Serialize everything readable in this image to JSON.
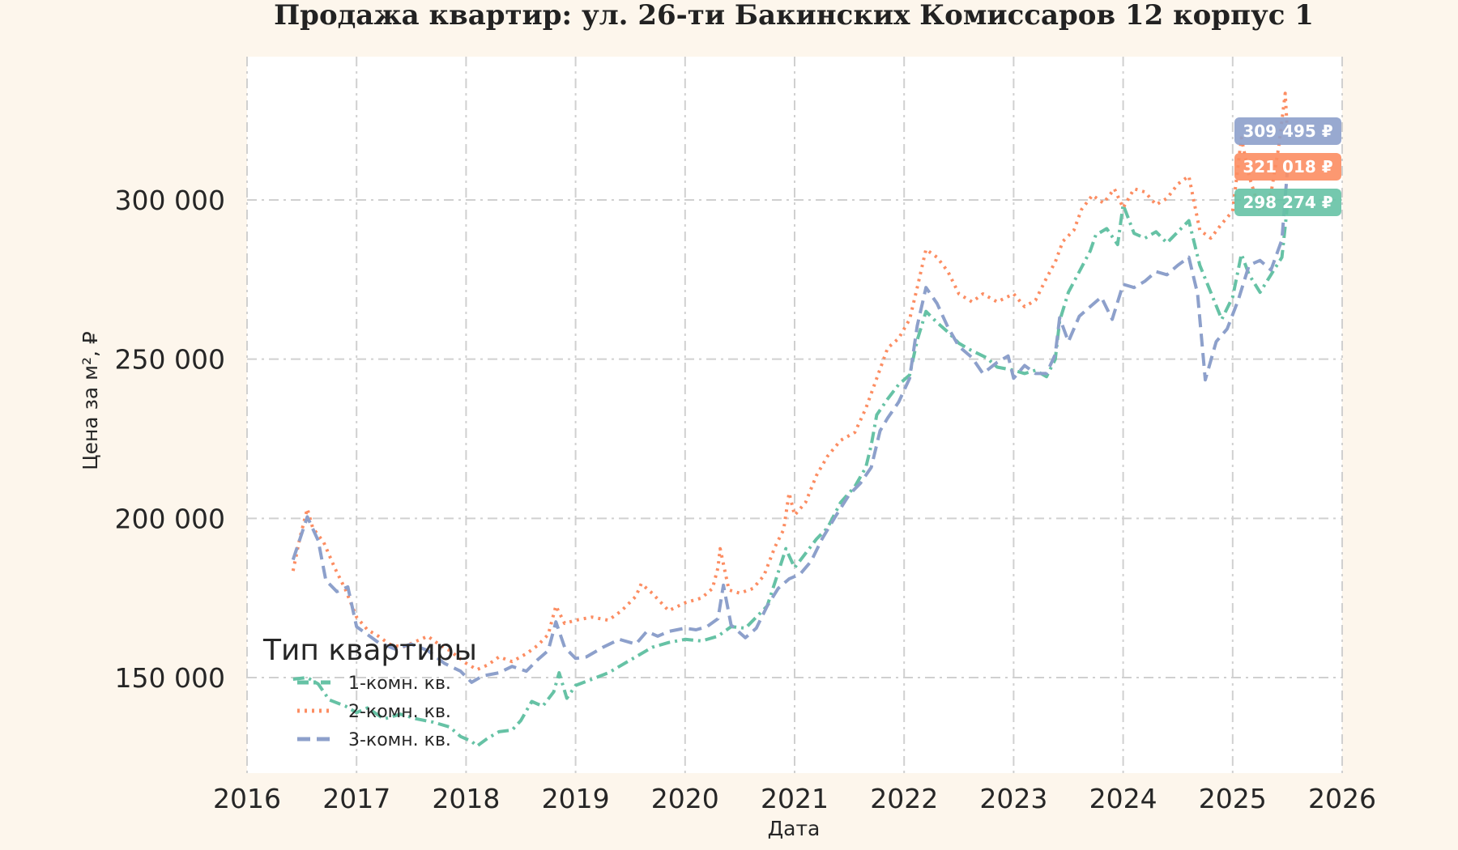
{
  "chart_data": {
    "type": "line",
    "title": "Продажа квартир: ул. 26-ти Бакинских Комиссаров 12 корпус 1",
    "xlabel": "Дата",
    "ylabel": "Цена за м², ₽",
    "xlim": [
      2016.0,
      2026.0
    ],
    "ylim": [
      120000,
      345000
    ],
    "x_ticks": [
      "2016",
      "2017",
      "2018",
      "2019",
      "2020",
      "2021",
      "2022",
      "2023",
      "2024",
      "2025",
      "2026"
    ],
    "y_ticks": [
      {
        "value": 150000,
        "label": "150 000"
      },
      {
        "value": 200000,
        "label": "200 000"
      },
      {
        "value": 250000,
        "label": "250 000"
      },
      {
        "value": 300000,
        "label": "300 000"
      }
    ],
    "grid": true,
    "legend": {
      "title": "Тип квартиры",
      "position": "lower-left"
    },
    "series": [
      {
        "name": "1-комн. кв.",
        "color": "#66c2a5",
        "style": "dashdot",
        "end_label": "298 274 ₽",
        "points": [
          [
            2016.42,
            149500
          ],
          [
            2016.55,
            150000
          ],
          [
            2016.65,
            148000
          ],
          [
            2016.75,
            143000
          ],
          [
            2016.9,
            141000
          ],
          [
            2017.0,
            139000
          ],
          [
            2017.1,
            140500
          ],
          [
            2017.25,
            137000
          ],
          [
            2017.4,
            138500
          ],
          [
            2017.55,
            137000
          ],
          [
            2017.7,
            136000
          ],
          [
            2017.85,
            134500
          ],
          [
            2017.95,
            131500
          ],
          [
            2018.05,
            130000
          ],
          [
            2018.1,
            128500
          ],
          [
            2018.2,
            131000
          ],
          [
            2018.3,
            133000
          ],
          [
            2018.42,
            133500
          ],
          [
            2018.5,
            136500
          ],
          [
            2018.6,
            142500
          ],
          [
            2018.7,
            141000
          ],
          [
            2018.8,
            145500
          ],
          [
            2018.85,
            151500
          ],
          [
            2018.92,
            143500
          ],
          [
            2019.0,
            147500
          ],
          [
            2019.15,
            149500
          ],
          [
            2019.3,
            151500
          ],
          [
            2019.4,
            153500
          ],
          [
            2019.55,
            156500
          ],
          [
            2019.7,
            159500
          ],
          [
            2019.85,
            161000
          ],
          [
            2020.0,
            162000
          ],
          [
            2020.15,
            161500
          ],
          [
            2020.3,
            163000
          ],
          [
            2020.42,
            166000
          ],
          [
            2020.55,
            165500
          ],
          [
            2020.65,
            169000
          ],
          [
            2020.75,
            172500
          ],
          [
            2020.85,
            183000
          ],
          [
            2020.92,
            190500
          ],
          [
            2021.0,
            184500
          ],
          [
            2021.1,
            189000
          ],
          [
            2021.2,
            193500
          ],
          [
            2021.3,
            197000
          ],
          [
            2021.42,
            205000
          ],
          [
            2021.55,
            210000
          ],
          [
            2021.65,
            216000
          ],
          [
            2021.7,
            223000
          ],
          [
            2021.75,
            232500
          ],
          [
            2021.85,
            237500
          ],
          [
            2021.95,
            242000
          ],
          [
            2022.05,
            245000
          ],
          [
            2022.12,
            256000
          ],
          [
            2022.2,
            265000
          ],
          [
            2022.3,
            261500
          ],
          [
            2022.4,
            258500
          ],
          [
            2022.5,
            255000
          ],
          [
            2022.6,
            253000
          ],
          [
            2022.75,
            250500
          ],
          [
            2022.85,
            247500
          ],
          [
            2023.0,
            246500
          ],
          [
            2023.1,
            245500
          ],
          [
            2023.2,
            246500
          ],
          [
            2023.3,
            244500
          ],
          [
            2023.38,
            250000
          ],
          [
            2023.42,
            262000
          ],
          [
            2023.5,
            271000
          ],
          [
            2023.6,
            277500
          ],
          [
            2023.7,
            284000
          ],
          [
            2023.75,
            289000
          ],
          [
            2023.85,
            291000
          ],
          [
            2023.95,
            286000
          ],
          [
            2024.0,
            298500
          ],
          [
            2024.1,
            289500
          ],
          [
            2024.2,
            288000
          ],
          [
            2024.3,
            290000
          ],
          [
            2024.4,
            286500
          ],
          [
            2024.5,
            290000
          ],
          [
            2024.6,
            293500
          ],
          [
            2024.7,
            279500
          ],
          [
            2024.8,
            271000
          ],
          [
            2024.9,
            262500
          ],
          [
            2025.0,
            269500
          ],
          [
            2025.08,
            283000
          ],
          [
            2025.15,
            276500
          ],
          [
            2025.25,
            271000
          ],
          [
            2025.35,
            276500
          ],
          [
            2025.45,
            282000
          ],
          [
            2025.5,
            298274
          ]
        ]
      },
      {
        "name": "2-комн. кв.",
        "color": "#fc8d62",
        "style": "dotted",
        "end_label": "321 018 ₽",
        "points": [
          [
            2016.42,
            183500
          ],
          [
            2016.48,
            193500
          ],
          [
            2016.55,
            203000
          ],
          [
            2016.6,
            197000
          ],
          [
            2016.7,
            192500
          ],
          [
            2016.8,
            184500
          ],
          [
            2016.9,
            177500
          ],
          [
            2017.0,
            169000
          ],
          [
            2017.1,
            165000
          ],
          [
            2017.2,
            163000
          ],
          [
            2017.3,
            160500
          ],
          [
            2017.42,
            159500
          ],
          [
            2017.55,
            161500
          ],
          [
            2017.65,
            163000
          ],
          [
            2017.75,
            160500
          ],
          [
            2017.85,
            158500
          ],
          [
            2018.0,
            154500
          ],
          [
            2018.1,
            152500
          ],
          [
            2018.2,
            154000
          ],
          [
            2018.3,
            156500
          ],
          [
            2018.42,
            155000
          ],
          [
            2018.55,
            157500
          ],
          [
            2018.65,
            160000
          ],
          [
            2018.75,
            163500
          ],
          [
            2018.82,
            172500
          ],
          [
            2018.9,
            167000
          ],
          [
            2019.0,
            168000
          ],
          [
            2019.15,
            169000
          ],
          [
            2019.3,
            168000
          ],
          [
            2019.42,
            171000
          ],
          [
            2019.55,
            175500
          ],
          [
            2019.6,
            179500
          ],
          [
            2019.7,
            176500
          ],
          [
            2019.85,
            171000
          ],
          [
            2020.0,
            173500
          ],
          [
            2020.15,
            175000
          ],
          [
            2020.25,
            178000
          ],
          [
            2020.3,
            184500
          ],
          [
            2020.32,
            190500
          ],
          [
            2020.4,
            177500
          ],
          [
            2020.5,
            176500
          ],
          [
            2020.62,
            178000
          ],
          [
            2020.72,
            182000
          ],
          [
            2020.82,
            191000
          ],
          [
            2020.9,
            196500
          ],
          [
            2020.95,
            208000
          ],
          [
            2021.0,
            201000
          ],
          [
            2021.1,
            205000
          ],
          [
            2021.2,
            213500
          ],
          [
            2021.3,
            219500
          ],
          [
            2021.42,
            224500
          ],
          [
            2021.55,
            227000
          ],
          [
            2021.65,
            234500
          ],
          [
            2021.75,
            244000
          ],
          [
            2021.85,
            253500
          ],
          [
            2021.95,
            256500
          ],
          [
            2022.05,
            262500
          ],
          [
            2022.12,
            272500
          ],
          [
            2022.2,
            284500
          ],
          [
            2022.3,
            282000
          ],
          [
            2022.4,
            277500
          ],
          [
            2022.5,
            270500
          ],
          [
            2022.62,
            268000
          ],
          [
            2022.72,
            270500
          ],
          [
            2022.85,
            268000
          ],
          [
            2023.0,
            270500
          ],
          [
            2023.1,
            266500
          ],
          [
            2023.2,
            268500
          ],
          [
            2023.3,
            275500
          ],
          [
            2023.38,
            280500
          ],
          [
            2023.45,
            287000
          ],
          [
            2023.55,
            290500
          ],
          [
            2023.62,
            297000
          ],
          [
            2023.72,
            301500
          ],
          [
            2023.82,
            299000
          ],
          [
            2023.92,
            303500
          ],
          [
            2024.0,
            297500
          ],
          [
            2024.1,
            303500
          ],
          [
            2024.2,
            302500
          ],
          [
            2024.3,
            298500
          ],
          [
            2024.4,
            300500
          ],
          [
            2024.5,
            305000
          ],
          [
            2024.6,
            307500
          ],
          [
            2024.7,
            290500
          ],
          [
            2024.8,
            288000
          ],
          [
            2024.9,
            292500
          ],
          [
            2025.0,
            296500
          ],
          [
            2025.08,
            319500
          ],
          [
            2025.15,
            307500
          ],
          [
            2025.25,
            296500
          ],
          [
            2025.35,
            302000
          ],
          [
            2025.42,
            316500
          ],
          [
            2025.48,
            333500
          ],
          [
            2025.5,
            321018
          ]
        ]
      },
      {
        "name": "3-комн. кв.",
        "color": "#8da0cb",
        "style": "dashed",
        "end_label": "309 495 ₽",
        "points": [
          [
            2016.42,
            187000
          ],
          [
            2016.55,
            200500
          ],
          [
            2016.65,
            193000
          ],
          [
            2016.72,
            180500
          ],
          [
            2016.82,
            177000
          ],
          [
            2016.92,
            178500
          ],
          [
            2017.0,
            166000
          ],
          [
            2017.1,
            163500
          ],
          [
            2017.2,
            161000
          ],
          [
            2017.35,
            159000
          ],
          [
            2017.5,
            160500
          ],
          [
            2017.65,
            158500
          ],
          [
            2017.8,
            154500
          ],
          [
            2017.95,
            152000
          ],
          [
            2018.05,
            148500
          ],
          [
            2018.15,
            150500
          ],
          [
            2018.3,
            151500
          ],
          [
            2018.42,
            153500
          ],
          [
            2018.55,
            152000
          ],
          [
            2018.65,
            155500
          ],
          [
            2018.75,
            158500
          ],
          [
            2018.82,
            167500
          ],
          [
            2018.9,
            159500
          ],
          [
            2019.0,
            156000
          ],
          [
            2019.1,
            156500
          ],
          [
            2019.25,
            159500
          ],
          [
            2019.4,
            162000
          ],
          [
            2019.55,
            160500
          ],
          [
            2019.65,
            164500
          ],
          [
            2019.75,
            163000
          ],
          [
            2019.85,
            164500
          ],
          [
            2020.0,
            165500
          ],
          [
            2020.1,
            165000
          ],
          [
            2020.2,
            166000
          ],
          [
            2020.3,
            168500
          ],
          [
            2020.35,
            179000
          ],
          [
            2020.42,
            166500
          ],
          [
            2020.55,
            162500
          ],
          [
            2020.65,
            165500
          ],
          [
            2020.75,
            172500
          ],
          [
            2020.85,
            178000
          ],
          [
            2020.95,
            181000
          ],
          [
            2021.05,
            182500
          ],
          [
            2021.15,
            186500
          ],
          [
            2021.25,
            193500
          ],
          [
            2021.38,
            201000
          ],
          [
            2021.5,
            207500
          ],
          [
            2021.6,
            211000
          ],
          [
            2021.7,
            216000
          ],
          [
            2021.78,
            227500
          ],
          [
            2021.85,
            231500
          ],
          [
            2021.95,
            236500
          ],
          [
            2022.05,
            244000
          ],
          [
            2022.12,
            260500
          ],
          [
            2022.2,
            272500
          ],
          [
            2022.3,
            267500
          ],
          [
            2022.4,
            260000
          ],
          [
            2022.5,
            254000
          ],
          [
            2022.62,
            250500
          ],
          [
            2022.72,
            245500
          ],
          [
            2022.85,
            249000
          ],
          [
            2022.95,
            251000
          ],
          [
            2023.0,
            244000
          ],
          [
            2023.1,
            248000
          ],
          [
            2023.2,
            245500
          ],
          [
            2023.3,
            245500
          ],
          [
            2023.38,
            251500
          ],
          [
            2023.42,
            263000
          ],
          [
            2023.5,
            255500
          ],
          [
            2023.6,
            263500
          ],
          [
            2023.7,
            266500
          ],
          [
            2023.8,
            269500
          ],
          [
            2023.9,
            262500
          ],
          [
            2024.0,
            273500
          ],
          [
            2024.1,
            272500
          ],
          [
            2024.2,
            274500
          ],
          [
            2024.3,
            277500
          ],
          [
            2024.4,
            276500
          ],
          [
            2024.5,
            279500
          ],
          [
            2024.6,
            282000
          ],
          [
            2024.68,
            270500
          ],
          [
            2024.75,
            243500
          ],
          [
            2024.85,
            255500
          ],
          [
            2024.95,
            259500
          ],
          [
            2025.05,
            268500
          ],
          [
            2025.15,
            279500
          ],
          [
            2025.25,
            281000
          ],
          [
            2025.35,
            278000
          ],
          [
            2025.45,
            287500
          ],
          [
            2025.5,
            309495
          ]
        ]
      }
    ]
  }
}
